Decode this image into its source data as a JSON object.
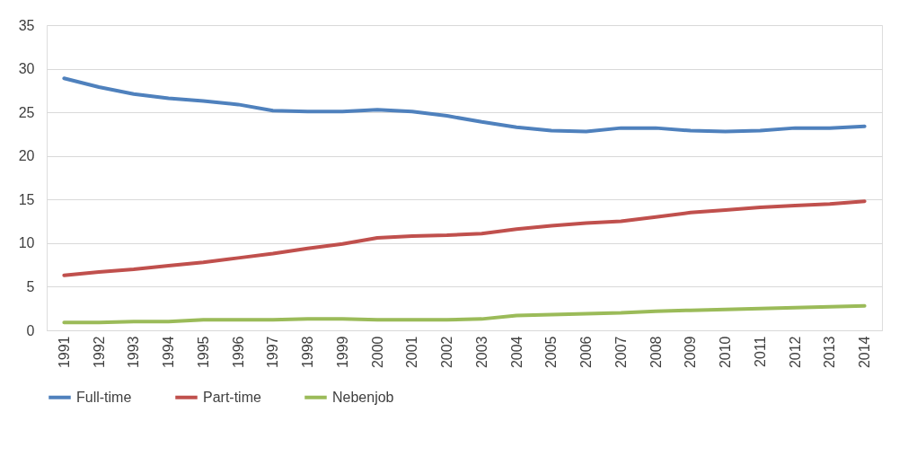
{
  "chart_data": {
    "type": "line",
    "categories": [
      "1991",
      "1992",
      "1993",
      "1994",
      "1995",
      "1996",
      "1997",
      "1998",
      "1999",
      "2000",
      "2001",
      "2002",
      "2003",
      "2004",
      "2005",
      "2006",
      "2007",
      "2008",
      "2009",
      "2010",
      "2011",
      "2012",
      "2013",
      "2014"
    ],
    "series": [
      {
        "name": "Full-time",
        "color": "#4f81bd",
        "values": [
          28.9,
          27.9,
          27.1,
          26.6,
          26.3,
          25.9,
          25.2,
          25.1,
          25.1,
          25.3,
          25.1,
          24.6,
          23.9,
          23.3,
          22.9,
          22.8,
          23.2,
          23.2,
          22.9,
          22.8,
          22.9,
          23.2,
          23.2,
          23.4
        ]
      },
      {
        "name": "Part-time",
        "color": "#c0504d",
        "values": [
          6.3,
          6.7,
          7.0,
          7.4,
          7.8,
          8.3,
          8.8,
          9.4,
          9.9,
          10.6,
          10.8,
          10.9,
          11.1,
          11.6,
          12.0,
          12.3,
          12.5,
          13.0,
          13.5,
          13.8,
          14.1,
          14.3,
          14.5,
          14.8
        ]
      },
      {
        "name": "Nebenjob",
        "color": "#9bbb59",
        "values": [
          0.9,
          0.9,
          1.0,
          1.0,
          1.2,
          1.2,
          1.2,
          1.3,
          1.3,
          1.2,
          1.2,
          1.2,
          1.3,
          1.7,
          1.8,
          1.9,
          2.0,
          2.2,
          2.3,
          2.4,
          2.5,
          2.6,
          2.7,
          2.8
        ]
      }
    ],
    "ylim": [
      0,
      35
    ],
    "yticks": [
      0,
      5,
      10,
      15,
      20,
      25,
      30,
      35
    ],
    "grid": "y",
    "legend": "bottom",
    "marker": "none",
    "line_style": "solid"
  }
}
